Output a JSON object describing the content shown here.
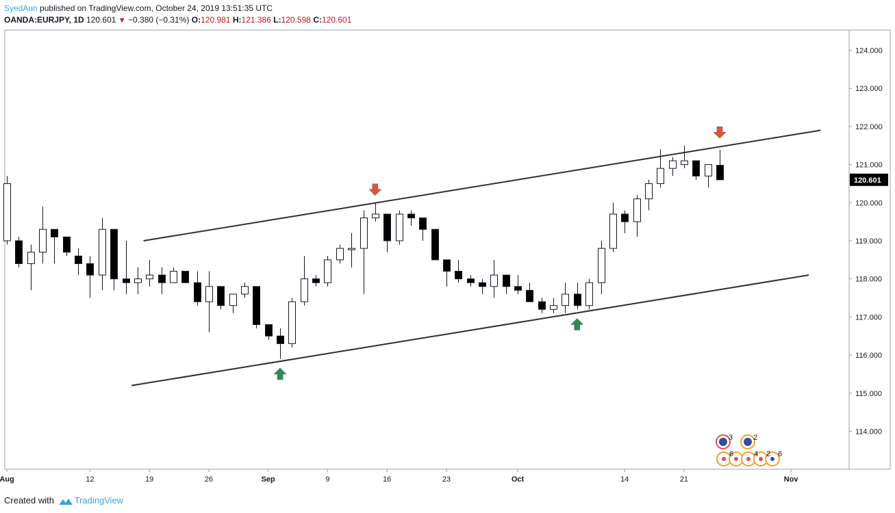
{
  "header": {
    "author": "SyedAun",
    "published_text": "published on TradingView.com, October 24, 2019 13:51:35 UTC",
    "symbol": "OANDA:EURJPY, 1D",
    "last": "120.601",
    "change_arrow": "▼",
    "change": "−0.380 (−0.31%)",
    "open_label": "O:",
    "open": "120.981",
    "high_label": "H:",
    "high": "121.386",
    "low_label": "L:",
    "low": "120.598",
    "close_label": "C:",
    "close": "120.601"
  },
  "footer": {
    "created_with": "Created with",
    "brand": "TradingView"
  },
  "chart_data": {
    "type": "candlestick",
    "symbol": "OANDA:EURJPY",
    "timeframe": "1D",
    "ylim": [
      113.0,
      124.5
    ],
    "y_ticks": [
      "124.000",
      "123.000",
      "122.000",
      "121.000",
      "120.000",
      "119.000",
      "118.000",
      "117.000",
      "116.000",
      "115.000",
      "114.000"
    ],
    "y_tick_values": [
      124,
      123,
      122,
      121,
      120,
      119,
      118,
      117,
      116,
      115,
      114
    ],
    "last_price_label": "120.601",
    "x_ticks": [
      {
        "label": "Aug",
        "bar": 0,
        "bold": true
      },
      {
        "label": "12",
        "bar": 7
      },
      {
        "label": "19",
        "bar": 12
      },
      {
        "label": "26",
        "bar": 17
      },
      {
        "label": "Sep",
        "bar": 22,
        "bold": true
      },
      {
        "label": "9",
        "bar": 27
      },
      {
        "label": "16",
        "bar": 32
      },
      {
        "label": "23",
        "bar": 37
      },
      {
        "label": "Oct",
        "bar": 43,
        "bold": true
      },
      {
        "label": "14",
        "bar": 52
      },
      {
        "label": "21",
        "bar": 57
      },
      {
        "label": "Nov",
        "bar": 66,
        "bold": true
      }
    ],
    "candles": [
      {
        "o": 119.0,
        "h": 120.7,
        "l": 118.9,
        "c": 120.5
      },
      {
        "o": 119.0,
        "h": 119.1,
        "l": 118.3,
        "c": 118.4
      },
      {
        "o": 118.4,
        "h": 118.9,
        "l": 117.7,
        "c": 118.7
      },
      {
        "o": 118.7,
        "h": 119.9,
        "l": 118.4,
        "c": 119.3
      },
      {
        "o": 119.3,
        "h": 119.3,
        "l": 118.4,
        "c": 119.1
      },
      {
        "o": 119.1,
        "h": 119.1,
        "l": 118.6,
        "c": 118.7
      },
      {
        "o": 118.6,
        "h": 118.8,
        "l": 118.1,
        "c": 118.4
      },
      {
        "o": 118.4,
        "h": 118.6,
        "l": 117.5,
        "c": 118.1
      },
      {
        "o": 118.1,
        "h": 119.6,
        "l": 117.7,
        "c": 119.3
      },
      {
        "o": 119.3,
        "h": 119.3,
        "l": 117.7,
        "c": 118.0
      },
      {
        "o": 118.0,
        "h": 119.0,
        "l": 117.6,
        "c": 117.9
      },
      {
        "o": 117.9,
        "h": 118.3,
        "l": 117.6,
        "c": 118.0
      },
      {
        "o": 118.0,
        "h": 118.5,
        "l": 117.8,
        "c": 118.1
      },
      {
        "o": 118.1,
        "h": 118.3,
        "l": 117.6,
        "c": 117.9
      },
      {
        "o": 117.9,
        "h": 118.3,
        "l": 117.9,
        "c": 118.2
      },
      {
        "o": 118.2,
        "h": 118.2,
        "l": 117.9,
        "c": 117.9
      },
      {
        "o": 117.9,
        "h": 118.2,
        "l": 117.3,
        "c": 117.4
      },
      {
        "o": 117.4,
        "h": 118.2,
        "l": 116.6,
        "c": 117.8
      },
      {
        "o": 117.8,
        "h": 117.8,
        "l": 117.2,
        "c": 117.3
      },
      {
        "o": 117.3,
        "h": 117.6,
        "l": 117.1,
        "c": 117.6
      },
      {
        "o": 117.6,
        "h": 117.9,
        "l": 117.5,
        "c": 117.8
      },
      {
        "o": 117.8,
        "h": 117.8,
        "l": 116.7,
        "c": 116.8
      },
      {
        "o": 116.8,
        "h": 116.8,
        "l": 116.4,
        "c": 116.5
      },
      {
        "o": 116.5,
        "h": 116.7,
        "l": 115.9,
        "c": 116.3
      },
      {
        "o": 116.3,
        "h": 117.5,
        "l": 116.2,
        "c": 117.4
      },
      {
        "o": 117.4,
        "h": 118.6,
        "l": 117.3,
        "c": 118.0
      },
      {
        "o": 118.0,
        "h": 118.1,
        "l": 117.8,
        "c": 117.9
      },
      {
        "o": 117.9,
        "h": 118.6,
        "l": 117.8,
        "c": 118.5
      },
      {
        "o": 118.5,
        "h": 118.9,
        "l": 118.4,
        "c": 118.8
      },
      {
        "o": 118.8,
        "h": 119.2,
        "l": 118.3,
        "c": 118.8
      },
      {
        "o": 118.8,
        "h": 119.8,
        "l": 117.6,
        "c": 119.6
      },
      {
        "o": 119.6,
        "h": 120.0,
        "l": 119.5,
        "c": 119.7
      },
      {
        "o": 119.7,
        "h": 119.7,
        "l": 118.7,
        "c": 119.0
      },
      {
        "o": 119.0,
        "h": 119.8,
        "l": 118.9,
        "c": 119.7
      },
      {
        "o": 119.7,
        "h": 119.8,
        "l": 119.4,
        "c": 119.6
      },
      {
        "o": 119.6,
        "h": 119.6,
        "l": 119.0,
        "c": 119.3
      },
      {
        "o": 119.3,
        "h": 119.3,
        "l": 118.5,
        "c": 118.5
      },
      {
        "o": 118.5,
        "h": 118.5,
        "l": 117.8,
        "c": 118.2
      },
      {
        "o": 118.2,
        "h": 118.5,
        "l": 117.9,
        "c": 118.0
      },
      {
        "o": 118.0,
        "h": 118.1,
        "l": 117.8,
        "c": 117.9
      },
      {
        "o": 117.9,
        "h": 118.0,
        "l": 117.6,
        "c": 117.8
      },
      {
        "o": 117.8,
        "h": 118.5,
        "l": 117.5,
        "c": 118.1
      },
      {
        "o": 118.1,
        "h": 118.1,
        "l": 117.6,
        "c": 117.8
      },
      {
        "o": 117.8,
        "h": 118.1,
        "l": 117.6,
        "c": 117.7
      },
      {
        "o": 117.7,
        "h": 117.9,
        "l": 117.4,
        "c": 117.4
      },
      {
        "o": 117.4,
        "h": 117.5,
        "l": 117.1,
        "c": 117.2
      },
      {
        "o": 117.2,
        "h": 117.5,
        "l": 117.1,
        "c": 117.3
      },
      {
        "o": 117.3,
        "h": 117.9,
        "l": 117.1,
        "c": 117.6
      },
      {
        "o": 117.6,
        "h": 117.9,
        "l": 117.2,
        "c": 117.3
      },
      {
        "o": 117.3,
        "h": 118.0,
        "l": 117.2,
        "c": 117.9
      },
      {
        "o": 117.9,
        "h": 119.0,
        "l": 117.6,
        "c": 118.8
      },
      {
        "o": 118.8,
        "h": 120.0,
        "l": 118.7,
        "c": 119.7
      },
      {
        "o": 119.7,
        "h": 119.8,
        "l": 119.2,
        "c": 119.5
      },
      {
        "o": 119.5,
        "h": 120.2,
        "l": 119.1,
        "c": 120.1
      },
      {
        "o": 120.1,
        "h": 120.6,
        "l": 119.8,
        "c": 120.5
      },
      {
        "o": 120.5,
        "h": 121.4,
        "l": 120.4,
        "c": 120.9
      },
      {
        "o": 120.9,
        "h": 121.2,
        "l": 120.7,
        "c": 121.1
      },
      {
        "o": 121.0,
        "h": 121.5,
        "l": 120.9,
        "c": 121.1
      },
      {
        "o": 121.1,
        "h": 121.1,
        "l": 120.6,
        "c": 120.7
      },
      {
        "o": 120.7,
        "h": 121.0,
        "l": 120.4,
        "c": 121.0
      },
      {
        "o": 120.981,
        "h": 121.386,
        "l": 120.598,
        "c": 120.601
      }
    ],
    "channel_upper": {
      "from": {
        "bar": 11.5,
        "price": 119.0
      },
      "to": {
        "bar": 68.5,
        "price": 121.9
      }
    },
    "channel_lower": {
      "from": {
        "bar": 10.5,
        "price": 115.2
      },
      "to": {
        "bar": 67.5,
        "price": 118.1
      }
    },
    "annotations": [
      {
        "type": "arrow-up",
        "bar": 23,
        "price": 115.5,
        "color": "#2e8b57"
      },
      {
        "type": "arrow-down",
        "bar": 31,
        "price": 120.35,
        "color": "#e0533a"
      },
      {
        "type": "arrow-up",
        "bar": 48,
        "price": 116.8,
        "color": "#2e8b57"
      },
      {
        "type": "arrow-down",
        "bar": 60,
        "price": 121.85,
        "color": "#e0533a"
      }
    ],
    "event_markers": {
      "row1": [
        "3",
        "2"
      ],
      "row2": [
        "6",
        "4",
        "2",
        "6"
      ]
    }
  }
}
